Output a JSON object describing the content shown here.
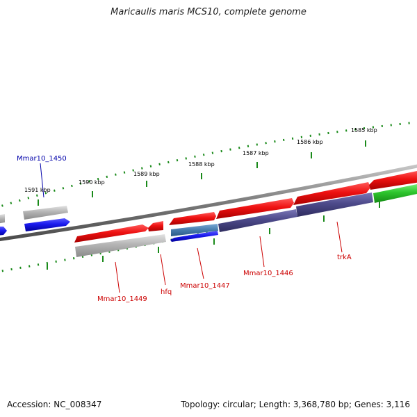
{
  "title": "Maricaulis maris MCS10, complete genome",
  "footer": {
    "accession": "Accession: NC_008347",
    "summary": "Topology: circular; Length: 3,368,780 bp; Genes: 3,116"
  },
  "colors": {
    "backbone": "#808080",
    "tick": "#1a8a1a",
    "label_red": "#cc0000",
    "label_blue": "#0000aa",
    "red": "#ee1111",
    "blue": "#1a1aee",
    "gray": "#b4b4b4",
    "purple": "#4d4a8a",
    "steel": "#4a7fb0",
    "green": "#2ec62e"
  },
  "scale_labels": [
    "1591 kbp",
    "1590 kbp",
    "1589 kbp",
    "1588 kbp",
    "1587 kbp",
    "1586 kbp",
    "1585 kbp"
  ],
  "gene_labels": [
    "Mmar10_1450",
    "Mmar10_1449",
    "hfq",
    "Mmar10_1447",
    "Mmar10_1446",
    "trkA"
  ]
}
